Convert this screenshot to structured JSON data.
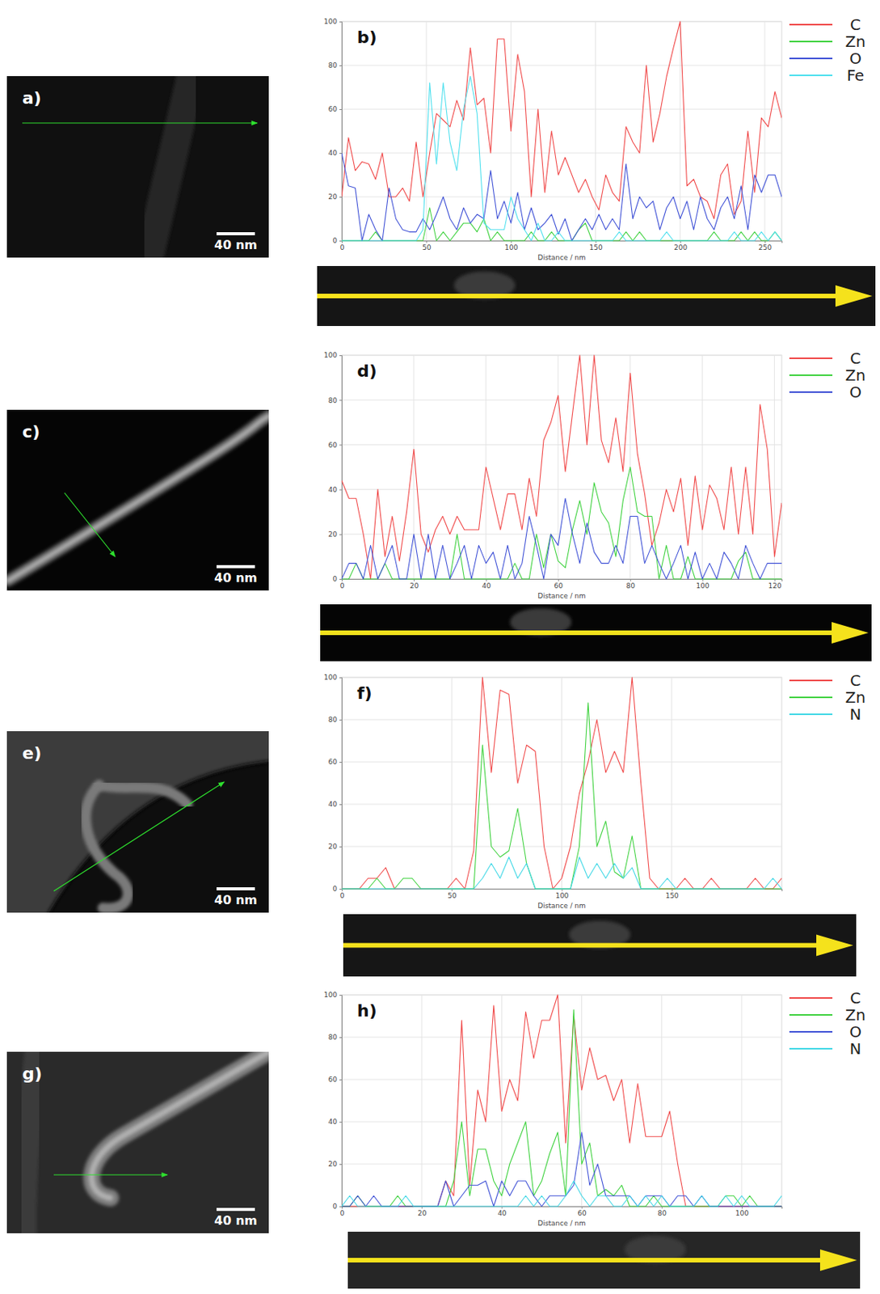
{
  "chart_data": [
    {
      "type": "line",
      "title": "b)",
      "x_label": "Distance / nm",
      "x": [
        0,
        4,
        8,
        12,
        16,
        20,
        24,
        28,
        32,
        36,
        40,
        44,
        48,
        52,
        56,
        60,
        64,
        68,
        72,
        76,
        80,
        84,
        88,
        92,
        96,
        100,
        104,
        108,
        112,
        116,
        120,
        124,
        128,
        132,
        136,
        140,
        144,
        148,
        152,
        156,
        160,
        164,
        168,
        172,
        176,
        180,
        184,
        188,
        192,
        196,
        200,
        204,
        208,
        212,
        216,
        220,
        224,
        228,
        232,
        236,
        240,
        244,
        248,
        252,
        256,
        260
      ],
      "xlim": [
        0,
        260
      ],
      "xticks": [
        0,
        50,
        100,
        150,
        200,
        250
      ],
      "ylim": [
        0,
        100
      ],
      "yticks": [
        0,
        20,
        40,
        60,
        80,
        100
      ],
      "grid": true,
      "legend": "right",
      "series": [
        {
          "name": "C",
          "color": "#f04848",
          "values": [
            20,
            47,
            32,
            36,
            35,
            28,
            40,
            20,
            20,
            24,
            18,
            45,
            20,
            40,
            58,
            55,
            52,
            64,
            55,
            88,
            62,
            65,
            40,
            92,
            92,
            50,
            85,
            68,
            20,
            60,
            22,
            50,
            30,
            38,
            30,
            22,
            28,
            20,
            14,
            30,
            22,
            18,
            52,
            45,
            40,
            80,
            45,
            58,
            75,
            88,
            100,
            25,
            28,
            20,
            18,
            10,
            30,
            35,
            12,
            18,
            50,
            22,
            56,
            52,
            68,
            56
          ]
        },
        {
          "name": "Zn",
          "color": "#3fd23f",
          "values": [
            0,
            0,
            0,
            0,
            0,
            4,
            0,
            0,
            0,
            0,
            0,
            0,
            0,
            15,
            0,
            4,
            0,
            4,
            8,
            8,
            4,
            10,
            0,
            4,
            0,
            0,
            0,
            0,
            4,
            0,
            0,
            4,
            0,
            0,
            0,
            5,
            8,
            0,
            0,
            0,
            0,
            0,
            4,
            0,
            4,
            0,
            0,
            0,
            0,
            0,
            0,
            0,
            0,
            0,
            0,
            4,
            0,
            0,
            0,
            4,
            0,
            4,
            0,
            0,
            4,
            0
          ]
        },
        {
          "name": "O",
          "color": "#4052d6",
          "values": [
            40,
            25,
            24,
            0,
            12,
            5,
            0,
            24,
            10,
            5,
            4,
            4,
            10,
            5,
            12,
            20,
            10,
            5,
            15,
            8,
            12,
            10,
            32,
            10,
            18,
            8,
            22,
            5,
            15,
            5,
            8,
            12,
            3,
            10,
            0,
            5,
            10,
            5,
            12,
            5,
            10,
            5,
            35,
            10,
            20,
            15,
            18,
            5,
            15,
            20,
            10,
            18,
            5,
            20,
            10,
            5,
            15,
            20,
            10,
            25,
            5,
            30,
            22,
            30,
            30,
            20
          ]
        },
        {
          "name": "Fe",
          "color": "#4fe0ee",
          "values": [
            0,
            0,
            0,
            0,
            0,
            0,
            0,
            0,
            0,
            0,
            0,
            0,
            5,
            72,
            35,
            72,
            45,
            32,
            60,
            75,
            58,
            8,
            5,
            5,
            5,
            20,
            10,
            5,
            0,
            8,
            0,
            0,
            4,
            0,
            0,
            0,
            0,
            0,
            0,
            0,
            0,
            4,
            0,
            0,
            0,
            0,
            0,
            0,
            4,
            0,
            0,
            0,
            0,
            0,
            0,
            0,
            0,
            0,
            4,
            0,
            0,
            0,
            4,
            0,
            4,
            0
          ]
        }
      ]
    },
    {
      "type": "line",
      "title": "d)",
      "x_label": "Distance / nm",
      "x": [
        0,
        2,
        4,
        6,
        8,
        10,
        12,
        14,
        16,
        18,
        20,
        22,
        24,
        26,
        28,
        30,
        32,
        34,
        36,
        38,
        40,
        42,
        44,
        46,
        48,
        50,
        52,
        54,
        56,
        58,
        60,
        62,
        64,
        66,
        68,
        70,
        72,
        74,
        76,
        78,
        80,
        82,
        84,
        86,
        88,
        90,
        92,
        94,
        96,
        98,
        100,
        102,
        104,
        106,
        108,
        110,
        112,
        114,
        116,
        118,
        120,
        122
      ],
      "xlim": [
        0,
        122
      ],
      "xticks": [
        0,
        20,
        40,
        60,
        80,
        100,
        120
      ],
      "ylim": [
        0,
        100
      ],
      "yticks": [
        0,
        20,
        40,
        60,
        80,
        100
      ],
      "grid": true,
      "legend": "right",
      "series": [
        {
          "name": "C",
          "color": "#f04848",
          "values": [
            44,
            36,
            36,
            20,
            0,
            40,
            10,
            28,
            8,
            30,
            58,
            20,
            12,
            22,
            28,
            20,
            28,
            22,
            22,
            22,
            50,
            36,
            22,
            38,
            38,
            22,
            45,
            28,
            62,
            70,
            82,
            48,
            74,
            100,
            60,
            100,
            62,
            52,
            72,
            48,
            92,
            56,
            38,
            15,
            25,
            40,
            30,
            45,
            15,
            46,
            22,
            42,
            36,
            22,
            50,
            20,
            50,
            20,
            78,
            58,
            10,
            34
          ]
        },
        {
          "name": "Zn",
          "color": "#3fd23f",
          "values": [
            0,
            0,
            7,
            0,
            0,
            0,
            7,
            0,
            0,
            0,
            0,
            0,
            0,
            0,
            0,
            0,
            20,
            0,
            0,
            0,
            0,
            0,
            0,
            0,
            7,
            0,
            0,
            20,
            5,
            20,
            8,
            5,
            22,
            35,
            20,
            43,
            30,
            25,
            10,
            35,
            50,
            30,
            28,
            28,
            0,
            15,
            0,
            0,
            10,
            0,
            0,
            0,
            0,
            0,
            0,
            8,
            12,
            0,
            0,
            0,
            0,
            0
          ]
        },
        {
          "name": "O",
          "color": "#4052d6",
          "values": [
            0,
            7,
            7,
            0,
            15,
            0,
            7,
            15,
            0,
            0,
            20,
            0,
            20,
            0,
            15,
            0,
            7,
            15,
            0,
            15,
            7,
            12,
            0,
            15,
            0,
            7,
            28,
            15,
            0,
            20,
            15,
            36,
            20,
            7,
            25,
            12,
            7,
            7,
            15,
            7,
            28,
            28,
            7,
            15,
            7,
            0,
            7,
            15,
            0,
            12,
            0,
            7,
            0,
            12,
            7,
            0,
            15,
            7,
            0,
            7,
            7,
            7
          ]
        }
      ]
    },
    {
      "type": "line",
      "title": "f)",
      "x_label": "Distance / nm",
      "x": [
        0,
        4,
        8,
        12,
        16,
        20,
        24,
        28,
        32,
        36,
        40,
        44,
        48,
        52,
        56,
        60,
        64,
        68,
        72,
        76,
        80,
        84,
        88,
        92,
        96,
        100,
        104,
        108,
        112,
        116,
        120,
        124,
        128,
        132,
        136,
        140,
        144,
        148,
        152,
        156,
        160,
        164,
        168,
        172,
        176,
        180,
        184,
        188,
        192,
        196,
        200
      ],
      "xlim": [
        0,
        200
      ],
      "xticks": [
        0,
        50,
        100,
        150
      ],
      "ylim": [
        0,
        100
      ],
      "yticks": [
        0,
        20,
        40,
        60,
        80,
        100
      ],
      "grid": true,
      "legend": "right",
      "series": [
        {
          "name": "C",
          "color": "#f04848",
          "values": [
            0,
            0,
            0,
            5,
            5,
            10,
            0,
            0,
            0,
            0,
            0,
            0,
            0,
            5,
            0,
            18,
            100,
            55,
            94,
            92,
            50,
            68,
            65,
            20,
            0,
            5,
            20,
            45,
            60,
            80,
            55,
            65,
            55,
            100,
            50,
            5,
            0,
            0,
            0,
            5,
            0,
            0,
            5,
            0,
            0,
            0,
            0,
            5,
            0,
            0,
            5
          ]
        },
        {
          "name": "Zn",
          "color": "#3fd23f",
          "values": [
            0,
            0,
            0,
            0,
            5,
            0,
            0,
            5,
            5,
            0,
            0,
            0,
            0,
            0,
            0,
            0,
            68,
            20,
            15,
            18,
            38,
            12,
            0,
            0,
            0,
            0,
            0,
            20,
            88,
            20,
            32,
            8,
            5,
            25,
            0,
            0,
            0,
            0,
            0,
            0,
            0,
            0,
            0,
            0,
            0,
            0,
            0,
            0,
            0,
            0,
            0
          ]
        },
        {
          "name": "N",
          "color": "#42d8e6",
          "values": [
            0,
            0,
            0,
            0,
            0,
            0,
            0,
            0,
            0,
            0,
            0,
            0,
            0,
            0,
            0,
            0,
            5,
            12,
            5,
            15,
            5,
            12,
            0,
            0,
            0,
            0,
            0,
            15,
            5,
            12,
            5,
            12,
            5,
            10,
            0,
            0,
            0,
            5,
            0,
            0,
            0,
            0,
            0,
            0,
            0,
            0,
            0,
            0,
            0,
            5,
            0
          ]
        }
      ]
    },
    {
      "type": "line",
      "title": "h)",
      "x_label": "Distance / nm",
      "x": [
        0,
        2,
        4,
        6,
        8,
        10,
        12,
        14,
        16,
        18,
        20,
        22,
        24,
        26,
        28,
        30,
        32,
        34,
        36,
        38,
        40,
        42,
        44,
        46,
        48,
        50,
        52,
        54,
        56,
        58,
        60,
        62,
        64,
        66,
        68,
        70,
        72,
        74,
        76,
        78,
        80,
        82,
        84,
        86,
        88,
        90,
        92,
        94,
        96,
        98,
        100,
        102,
        104,
        106,
        108,
        110
      ],
      "xlim": [
        0,
        110
      ],
      "xticks": [
        0,
        20,
        40,
        60,
        80,
        100
      ],
      "ylim": [
        0,
        100
      ],
      "yticks": [
        0,
        20,
        40,
        60,
        80,
        100
      ],
      "grid": true,
      "legend": "right",
      "series": [
        {
          "name": "C",
          "color": "#f04848",
          "values": [
            0,
            0,
            0,
            0,
            0,
            0,
            0,
            0,
            0,
            0,
            0,
            0,
            0,
            12,
            5,
            88,
            10,
            55,
            40,
            95,
            45,
            60,
            50,
            92,
            70,
            88,
            88,
            100,
            30,
            90,
            55,
            75,
            60,
            62,
            50,
            60,
            30,
            58,
            33,
            33,
            33,
            45,
            20,
            0,
            0,
            0,
            0,
            0,
            0,
            0,
            0,
            0,
            0,
            0,
            0,
            0
          ]
        },
        {
          "name": "Zn",
          "color": "#3fd23f",
          "values": [
            0,
            0,
            5,
            0,
            0,
            0,
            0,
            5,
            0,
            0,
            0,
            0,
            0,
            0,
            12,
            40,
            5,
            27,
            27,
            12,
            5,
            20,
            30,
            40,
            5,
            12,
            25,
            35,
            5,
            93,
            20,
            30,
            5,
            8,
            5,
            10,
            0,
            0,
            0,
            5,
            0,
            0,
            0,
            0,
            0,
            0,
            0,
            0,
            5,
            5,
            0,
            5,
            0,
            0,
            0,
            0
          ]
        },
        {
          "name": "O",
          "color": "#4052d6",
          "values": [
            0,
            0,
            5,
            0,
            5,
            0,
            0,
            0,
            0,
            0,
            0,
            0,
            0,
            12,
            0,
            5,
            10,
            10,
            12,
            0,
            12,
            5,
            12,
            12,
            5,
            0,
            5,
            5,
            5,
            10,
            35,
            10,
            20,
            5,
            5,
            5,
            5,
            0,
            5,
            5,
            5,
            0,
            5,
            5,
            0,
            5,
            0,
            0,
            0,
            0,
            0,
            0,
            0,
            0,
            0,
            0
          ]
        },
        {
          "name": "N",
          "color": "#42d8e6",
          "values": [
            0,
            5,
            0,
            0,
            0,
            0,
            0,
            0,
            5,
            0,
            0,
            0,
            0,
            0,
            0,
            0,
            0,
            0,
            0,
            0,
            0,
            0,
            0,
            5,
            0,
            5,
            0,
            0,
            5,
            12,
            5,
            0,
            5,
            5,
            0,
            0,
            5,
            0,
            5,
            0,
            5,
            0,
            0,
            0,
            0,
            5,
            0,
            0,
            5,
            0,
            5,
            0,
            0,
            0,
            0,
            5
          ]
        }
      ]
    }
  ],
  "images": [
    {
      "label": "a)",
      "scale_bar": "40 nm"
    },
    {
      "label": "c)",
      "scale_bar": "40 nm"
    },
    {
      "label": "e)",
      "scale_bar": "40 nm"
    },
    {
      "label": "g)",
      "scale_bar": "40 nm"
    }
  ]
}
